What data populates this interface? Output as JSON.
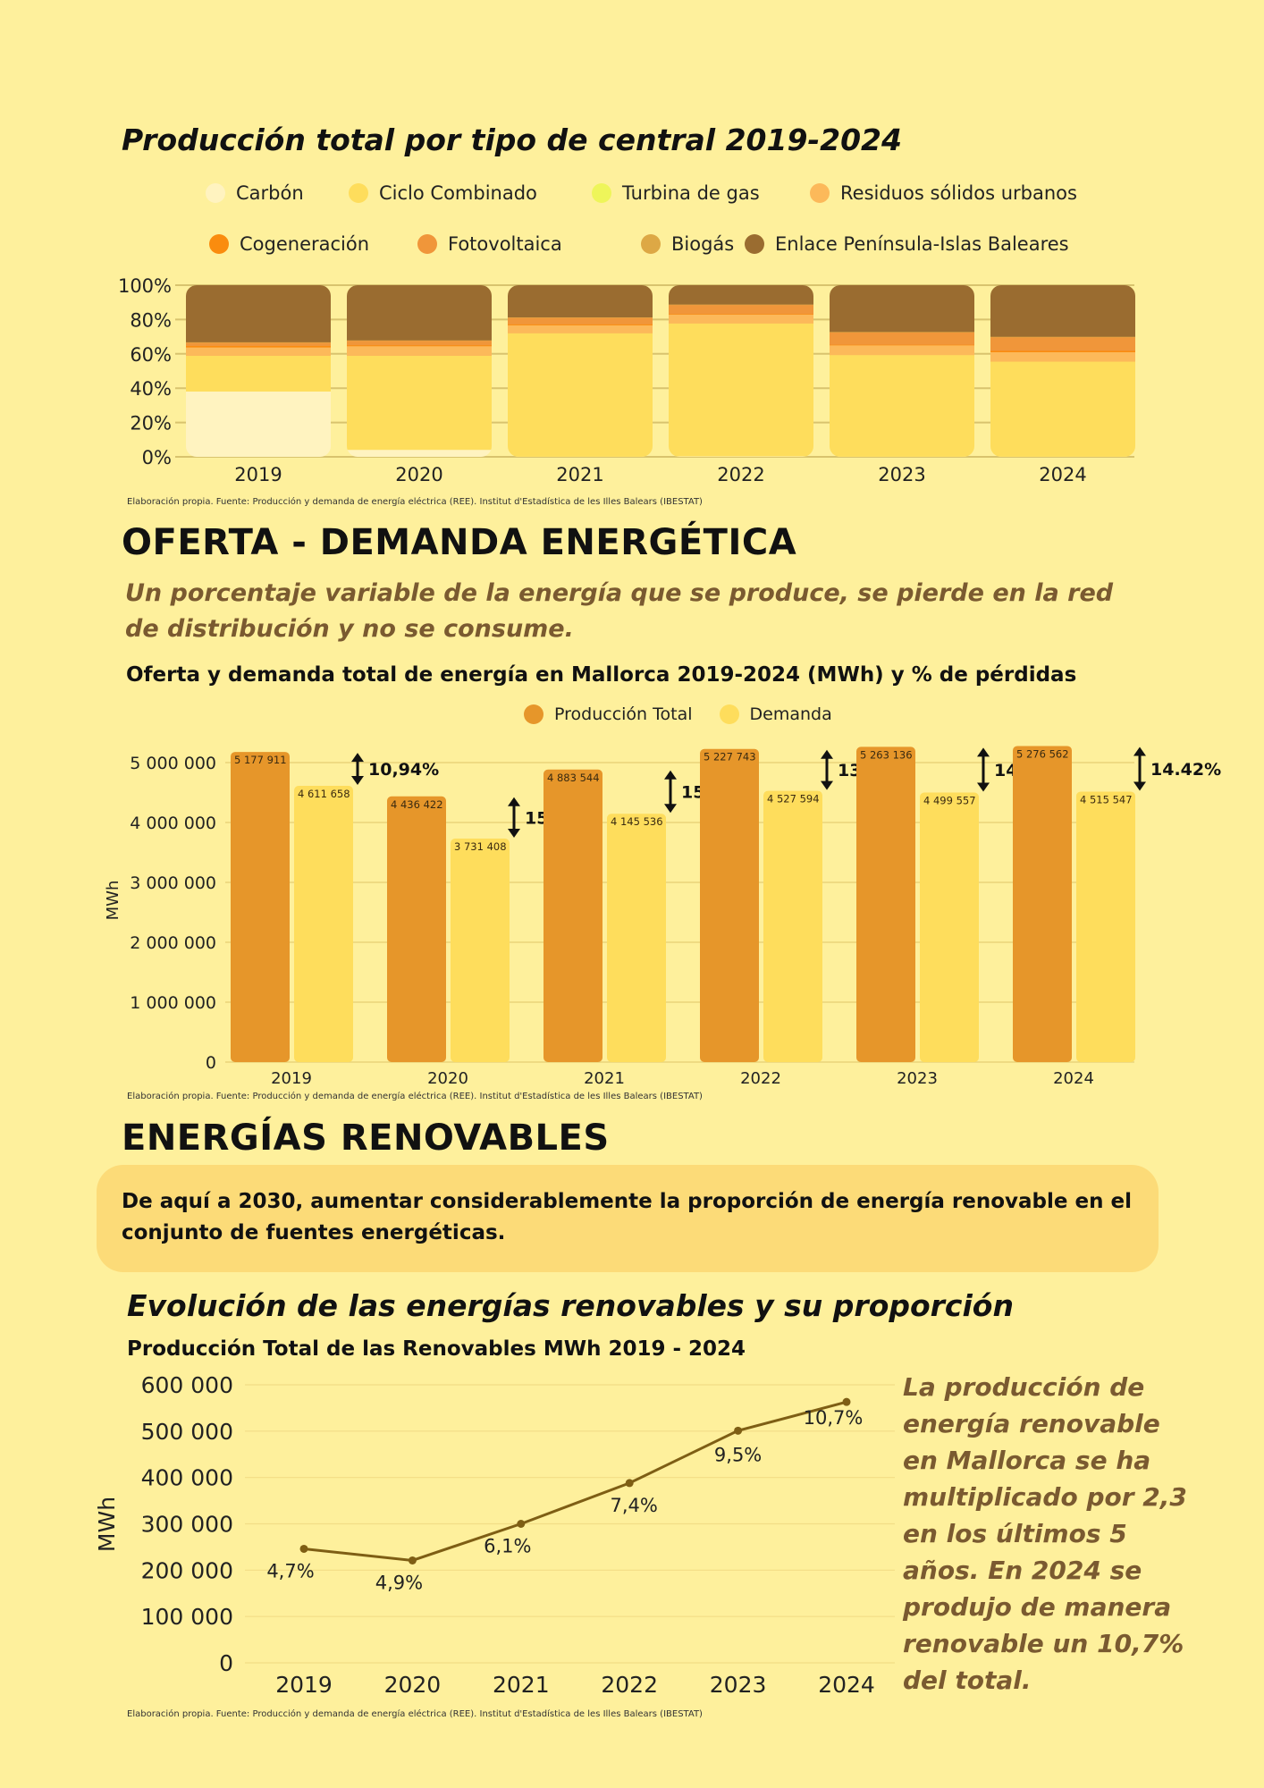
{
  "section1": {
    "title": "Producción total por tipo de central 2019-2024",
    "source": "Elaboración propia. Fuente: Producción y demanda de energía eléctrica (REE). Institut d'Estadística de les Illes Balears (IBESTAT)"
  },
  "section2": {
    "heading": "OFERTA - DEMANDA ENERGÉTICA",
    "subtitle": "Un porcentaje variable de la energía que se produce, se pierde en la red de distribución y no se consume.",
    "chart_title": "Oferta y demanda total de energía en Mallorca 2019-2024 (MWh)  y % de pérdidas",
    "source": "Elaboración propia. Fuente: Producción y demanda de energía eléctrica (REE). Institut d'Estadística de les Illes Balears (IBESTAT)"
  },
  "section3": {
    "heading": "ENERGÍAS RENOVABLES",
    "goal": "De aquí a 2030, aumentar considerablemente la proporción de energía renovable en el conjunto de fuentes energéticas.",
    "title": "Evolución de las energías renovables y su proporción",
    "chart_title": "Producción Total de las Renovables MWh 2019 - 2024",
    "side_text": "La producción de energía renovable en Mallorca se ha multiplicado por 2,3 en los últimos 5 años. En 2024 se produjo de manera renovable un 10,7% del total.",
    "source": "Elaboración propia. Fuente: Producción y demanda de energía eléctrica (REE). Institut d'Estadística de les Illes Balears (IBESTAT)"
  },
  "chart_data": [
    {
      "type": "bar",
      "stacked": true,
      "title": "Producción total por tipo de central 2019-2024",
      "categories": [
        "2019",
        "2020",
        "2021",
        "2022",
        "2023",
        "2024"
      ],
      "yticks": [
        "0%",
        "20%",
        "40%",
        "60%",
        "80%",
        "100%"
      ],
      "ylim": [
        0,
        100
      ],
      "grid": true,
      "legend": "top",
      "series": [
        {
          "name": "Carbón",
          "color": "#FFF3C0",
          "values": [
            38.3,
            4.3,
            0.3,
            0.5,
            0.3,
            0.3
          ]
        },
        {
          "name": "Ciclo Combinado",
          "color": "#FEDD5C",
          "values": [
            20.8,
            54.8,
            71.9,
            77.4,
            59.2,
            55.4
          ]
        },
        {
          "name": "Turbina de gas",
          "color": "#EEF55A",
          "values": [
            0,
            0,
            0,
            0,
            0,
            0
          ]
        },
        {
          "name": "Residuos sólidos urbanos",
          "color": "#FCB95A",
          "values": [
            4.9,
            5.6,
            4.7,
            5.2,
            5.7,
            5.5
          ]
        },
        {
          "name": "Cogeneración",
          "color": "#FA8C0E",
          "values": [
            0.8,
            0.5,
            0.5,
            0.3,
            0.3,
            0.8
          ]
        },
        {
          "name": "Fotovoltaica",
          "color": "#F0963A",
          "values": [
            1.9,
            2.6,
            3.8,
            5.3,
            7.2,
            7.9
          ]
        },
        {
          "name": "Biogás",
          "color": "#DDA845",
          "values": [
            0.3,
            0.3,
            0.3,
            0.3,
            0.3,
            0.3
          ]
        },
        {
          "name": "Enlace Península-Islas Baleares",
          "color": "#9A6C30",
          "values": [
            33.0,
            31.9,
            18.5,
            11.0,
            27.0,
            29.8
          ]
        }
      ]
    },
    {
      "type": "bar",
      "title": "Oferta y demanda total de energía en Mallorca 2019-2024 (MWh)  y % de pérdidas",
      "ylabel": "MWh",
      "categories": [
        "2019",
        "2020",
        "2021",
        "2022",
        "2023",
        "2024"
      ],
      "yticks": [
        "0",
        "1 000 000",
        "2 000 000",
        "3 000 000",
        "4 000 000",
        "5 000 000"
      ],
      "ylim": [
        0,
        5000000
      ],
      "grid": true,
      "legend": "top",
      "series": [
        {
          "name": "Producción Total",
          "color": "#E6962A",
          "values": [
            5177911,
            4436422,
            4883544,
            5227743,
            5263136,
            5276562
          ],
          "labels": [
            "5 177 911",
            "4 436 422",
            "4 883 544",
            "5 227 743",
            "5 263 136",
            "5 276 562"
          ]
        },
        {
          "name": "Demanda",
          "color": "#FEDD5C",
          "values": [
            4611658,
            3731408,
            4145536,
            4527594,
            4499557,
            4515547
          ],
          "labels": [
            "4 611 658",
            "3 731 408",
            "4 145 536",
            "4 527 594",
            "4 499 557",
            "4 515 547"
          ]
        }
      ],
      "losses": [
        "10,94%",
        "15.89%",
        "15.11%",
        "13.39%",
        "14.51%",
        "14.42%"
      ]
    },
    {
      "type": "line",
      "title": "Producción Total de las Renovables MWh 2019 - 2024",
      "ylabel": "MWh",
      "x": [
        "2019",
        "2020",
        "2021",
        "2022",
        "2023",
        "2024"
      ],
      "y": [
        246000,
        221000,
        300000,
        388000,
        501000,
        563000
      ],
      "point_labels": [
        "4,7%",
        "4,9%",
        "6,1%",
        "7,4%",
        "9,5%",
        "10,7%"
      ],
      "yticks": [
        "0",
        "100 000",
        "200 000",
        "300 000",
        "400 000",
        "500 000",
        "600 000"
      ],
      "ylim": [
        0,
        600000
      ],
      "grid": true,
      "color": "#7E5E14"
    }
  ]
}
